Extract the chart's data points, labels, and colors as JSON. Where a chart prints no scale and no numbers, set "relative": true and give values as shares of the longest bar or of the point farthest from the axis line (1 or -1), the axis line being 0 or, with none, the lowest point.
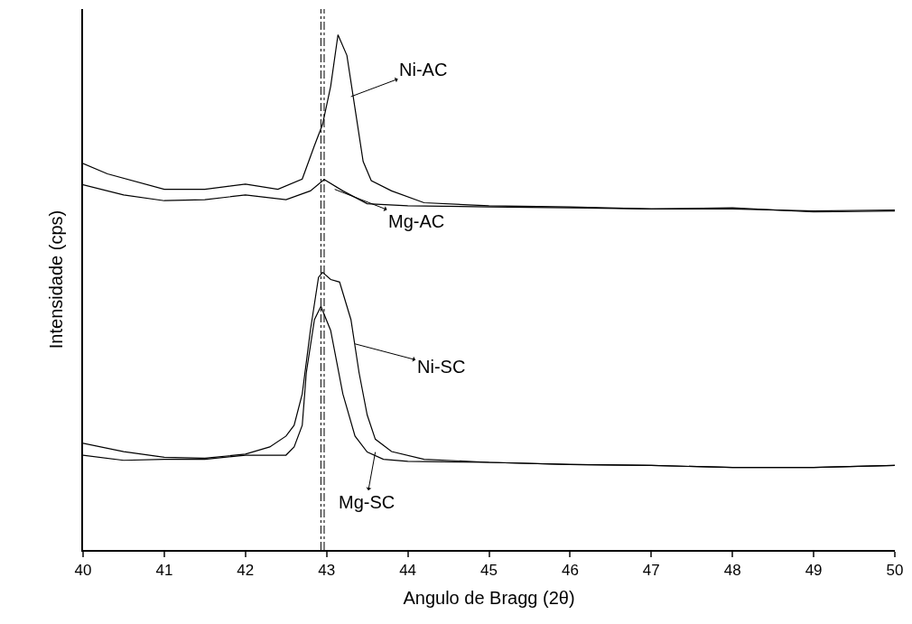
{
  "chart_data": {
    "type": "line",
    "xlabel": "Angulo de Bragg (2θ)",
    "ylabel": "Intensidade (cps)",
    "relative": true,
    "xlim": [
      40,
      50
    ],
    "xticks": [
      40,
      41,
      42,
      43,
      44,
      45,
      46,
      47,
      48,
      49,
      50
    ],
    "marker": "none",
    "line_style": "solid",
    "series": [
      {
        "color": "#000000",
        "x": [
          40,
          40.3,
          41,
          41.5,
          42,
          42.4,
          42.7,
          42.85,
          42.95,
          43.05,
          43.14,
          43.25,
          43.35,
          43.45,
          43.55,
          43.8,
          44.2,
          45,
          46,
          47,
          48,
          49,
          50
        ],
        "values": [
          0.75,
          0.73,
          0.7,
          0.7,
          0.71,
          0.7,
          0.72,
          0.785,
          0.826,
          0.9,
          1.0,
          0.96,
          0.857,
          0.754,
          0.717,
          0.697,
          0.674,
          0.668,
          0.666,
          0.662,
          0.662,
          0.658,
          0.66
        ]
      },
      {
        "color": "#000000",
        "x": [
          40,
          40.5,
          41,
          41.5,
          42,
          42.5,
          42.8,
          42.97,
          43.2,
          43.5,
          44,
          45,
          46,
          47,
          48,
          49,
          50
        ],
        "values": [
          0.709,
          0.689,
          0.678,
          0.68,
          0.689,
          0.68,
          0.697,
          0.719,
          0.697,
          0.672,
          0.668,
          0.666,
          0.664,
          0.662,
          0.664,
          0.656,
          0.658
        ]
      },
      {
        "color": "#000000",
        "x": [
          40,
          40.5,
          41,
          41.5,
          42,
          42.3,
          42.5,
          42.6,
          42.7,
          42.8,
          42.9,
          42.95,
          43.05,
          43.16,
          43.3,
          43.4,
          43.5,
          43.6,
          43.8,
          44.2,
          45,
          46,
          47,
          48,
          49,
          50
        ],
        "values": [
          0.207,
          0.191,
          0.18,
          0.178,
          0.186,
          0.2,
          0.221,
          0.242,
          0.303,
          0.426,
          0.529,
          0.539,
          0.525,
          0.52,
          0.447,
          0.344,
          0.262,
          0.215,
          0.191,
          0.176,
          0.17,
          0.166,
          0.164,
          0.16,
          0.16,
          0.164
        ]
      },
      {
        "color": "#000000",
        "x": [
          40,
          40.5,
          41,
          41.5,
          42,
          42.5,
          42.6,
          42.7,
          42.75,
          42.85,
          42.93,
          43.05,
          43.2,
          43.35,
          43.5,
          43.7,
          44,
          45,
          46,
          47,
          48,
          49,
          50
        ],
        "values": [
          0.184,
          0.174,
          0.176,
          0.176,
          0.184,
          0.184,
          0.2,
          0.242,
          0.344,
          0.447,
          0.473,
          0.426,
          0.303,
          0.221,
          0.19,
          0.176,
          0.172,
          0.17,
          0.166,
          0.164,
          0.16,
          0.16,
          0.164
        ]
      }
    ],
    "ref_lines": [
      {
        "axis": "x",
        "value": 42.97,
        "line_style": "dashdot"
      },
      {
        "axis": "x",
        "value": 42.93,
        "line_style": "dashdot"
      }
    ],
    "annotations": [
      {
        "text": "Ni-AC",
        "x": 43.3,
        "y": 0.88
      },
      {
        "text": "Mg-AC",
        "x": 43.1,
        "y": 0.7
      },
      {
        "text": "Ni-SC",
        "x": 43.35,
        "y": 0.4
      },
      {
        "text": "Mg-SC",
        "x": 43.6,
        "y": 0.19
      }
    ]
  }
}
